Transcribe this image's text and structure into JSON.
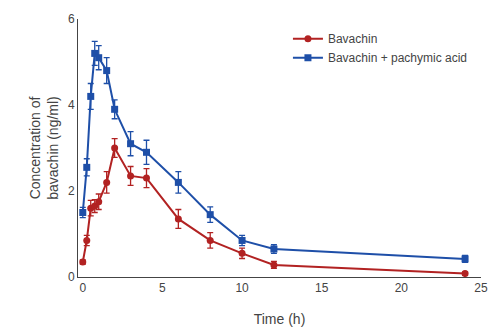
{
  "chart_data": {
    "type": "line",
    "xlabel": "Time (h)",
    "ylabel": "Concentration of\nbavachin (ng/ml)",
    "x": [
      0,
      0.25,
      0.5,
      0.75,
      1,
      1.5,
      2,
      3,
      4,
      6,
      8,
      10,
      12,
      24
    ],
    "series": [
      {
        "name": "Bavachin",
        "color": "#B22222",
        "marker": "circle",
        "values": [
          0.35,
          0.85,
          1.6,
          1.65,
          1.75,
          2.2,
          3.0,
          2.35,
          2.3,
          1.35,
          0.85,
          0.55,
          0.28,
          0.08
        ],
        "errors": [
          0.05,
          0.12,
          0.18,
          0.15,
          0.18,
          0.25,
          0.22,
          0.22,
          0.22,
          0.22,
          0.18,
          0.12,
          0.08,
          0.04
        ]
      },
      {
        "name": "Bavachin + pachymic acid",
        "color": "#1E4FA8",
        "marker": "square",
        "values": [
          1.5,
          2.55,
          4.2,
          5.2,
          5.1,
          4.8,
          3.9,
          3.1,
          2.9,
          2.2,
          1.45,
          0.85,
          0.65,
          0.42
        ],
        "errors": [
          0.12,
          0.2,
          0.3,
          0.28,
          0.28,
          0.3,
          0.22,
          0.28,
          0.28,
          0.25,
          0.18,
          0.12,
          0.1,
          0.08
        ]
      }
    ],
    "xlim": [
      -0.3,
      25
    ],
    "ylim": [
      0,
      6
    ],
    "xticks": [
      0,
      5,
      10,
      15,
      20,
      25
    ],
    "yticks": [
      0,
      2,
      4,
      6
    ],
    "legend": "upper right",
    "grid": false
  }
}
